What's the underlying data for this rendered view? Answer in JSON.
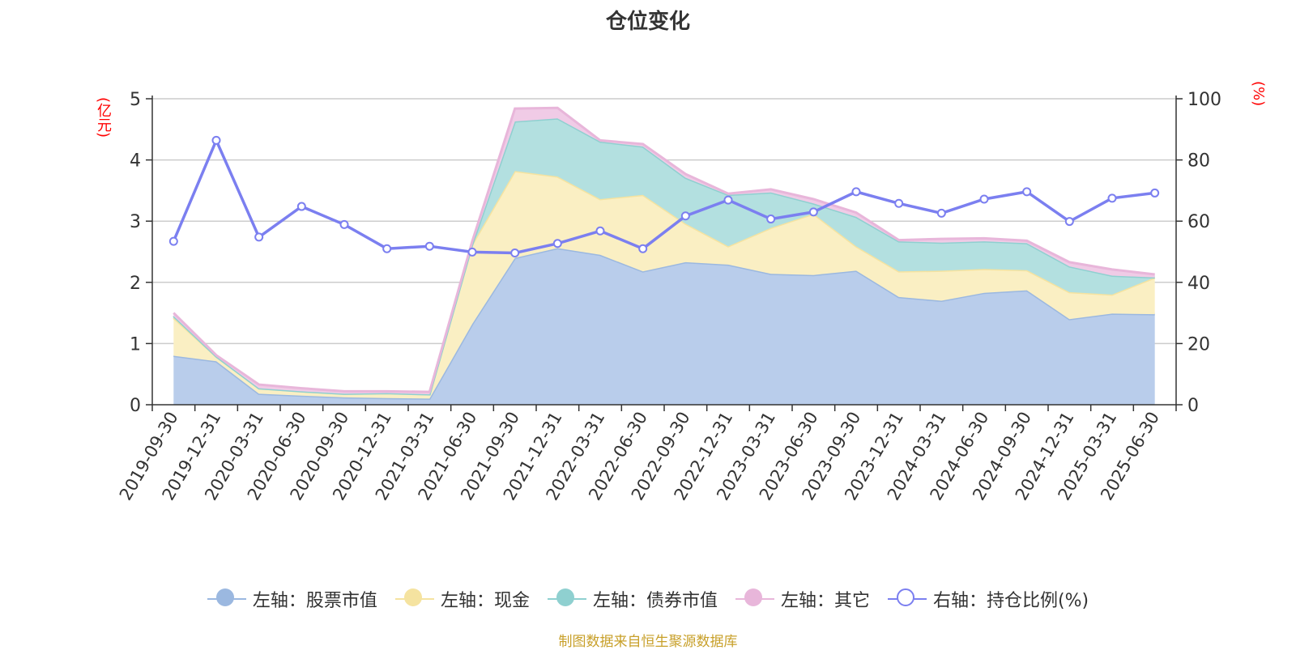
{
  "title": "仓位变化",
  "source": "制图数据来自恒生聚源数据库",
  "chart_data": {
    "type": "area",
    "title": "仓位变化",
    "y_left_label": "(亿元)",
    "y_right_label": "(%)",
    "y_left_range": [
      0,
      5
    ],
    "y_right_range": [
      0,
      100
    ],
    "y_left_ticks": [
      "0",
      "1",
      "2",
      "3",
      "4",
      "5"
    ],
    "y_right_ticks": [
      "0",
      "20",
      "40",
      "60",
      "80",
      "100"
    ],
    "grid": true,
    "legend_position": "bottom",
    "x": [
      "2019-09-30",
      "2019-12-31",
      "2020-03-31",
      "2020-06-30",
      "2020-09-30",
      "2020-12-31",
      "2021-03-31",
      "2021-06-30",
      "2021-09-30",
      "2021-12-31",
      "2022-03-31",
      "2022-06-30",
      "2022-09-30",
      "2022-12-31",
      "2023-03-31",
      "2023-06-30",
      "2023-09-30",
      "2023-12-31",
      "2024-03-31",
      "2024-06-30",
      "2024-09-30",
      "2024-12-31",
      "2025-03-31",
      "2025-06-30"
    ],
    "series": [
      {
        "name": "左轴：股票市值",
        "axis": "left",
        "stack": true,
        "color": "#9bb8e0",
        "fill": "#b9cdeb",
        "values": [
          0.8,
          0.71,
          0.18,
          0.15,
          0.12,
          0.11,
          0.1,
          1.32,
          2.4,
          2.56,
          2.45,
          2.18,
          2.33,
          2.29,
          2.14,
          2.12,
          2.19,
          1.76,
          1.7,
          1.83,
          1.87,
          1.4,
          1.49,
          1.48
        ]
      },
      {
        "name": "左轴：现金",
        "axis": "left",
        "stack": true,
        "color": "#f5e3a0",
        "fill": "#faefc3",
        "values": [
          0.62,
          0.08,
          0.09,
          0.07,
          0.06,
          0.08,
          0.07,
          1.3,
          1.42,
          1.17,
          0.91,
          1.25,
          0.63,
          0.3,
          0.75,
          1.0,
          0.4,
          0.42,
          0.49,
          0.39,
          0.33,
          0.44,
          0.31,
          0.6
        ]
      },
      {
        "name": "左轴：债券市值",
        "axis": "left",
        "stack": true,
        "color": "#8fd0d0",
        "fill": "#b3e0e0",
        "values": [
          0.03,
          0.0,
          0.0,
          0.0,
          0.0,
          0.0,
          0.0,
          0.0,
          0.81,
          0.95,
          0.94,
          0.79,
          0.75,
          0.84,
          0.58,
          0.17,
          0.48,
          0.49,
          0.46,
          0.45,
          0.44,
          0.42,
          0.31,
          0.0
        ]
      },
      {
        "name": "左轴：其它",
        "axis": "left",
        "stack": true,
        "color": "#e8b6da",
        "fill": "#f0cbe6",
        "values": [
          0.05,
          0.02,
          0.06,
          0.05,
          0.04,
          0.03,
          0.04,
          0.05,
          0.21,
          0.17,
          0.02,
          0.04,
          0.06,
          0.02,
          0.05,
          0.07,
          0.07,
          0.02,
          0.06,
          0.05,
          0.04,
          0.07,
          0.1,
          0.05
        ]
      },
      {
        "name": "右轴：持仓比例(%)",
        "axis": "right",
        "stack": false,
        "color": "#7b7ff0",
        "values": [
          53.4,
          86.4,
          54.8,
          64.8,
          58.9,
          51.0,
          51.8,
          49.9,
          49.6,
          52.7,
          56.8,
          51.0,
          61.7,
          66.9,
          60.7,
          63.0,
          69.6,
          65.8,
          62.6,
          67.2,
          69.6,
          59.9,
          67.5,
          69.2
        ]
      }
    ]
  }
}
